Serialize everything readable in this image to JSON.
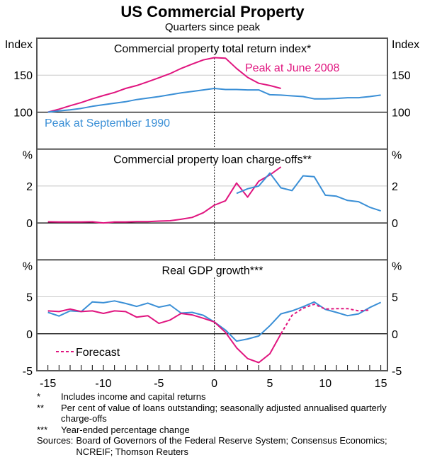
{
  "title": "US Commercial Property",
  "subtitle": "Quarters since peak",
  "colors": {
    "peak_2008": "#e0157f",
    "peak_1990": "#3a8fd6",
    "grid": "#c8c8c8"
  },
  "chart_data": [
    {
      "type": "line",
      "title": "Commercial property total return index*",
      "ylabel_left": "Index",
      "ylabel_right": "Index",
      "ylim": [
        50,
        200
      ],
      "yticks": [
        100,
        150
      ],
      "xlim": [
        -16,
        15.6
      ],
      "annotations": [
        "Peak at June 2008",
        "Peak at September 1990"
      ],
      "series": [
        {
          "name": "Peak at June 2008",
          "color": "peak_2008",
          "x0": -15,
          "values": [
            100,
            104,
            108.7,
            113,
            118,
            122.5,
            126.6,
            132,
            136,
            141,
            146.5,
            152,
            159,
            165,
            170.6,
            173.7,
            173,
            159,
            147,
            139,
            136,
            132
          ]
        },
        {
          "name": "Peak at September 1990",
          "color": "peak_1990",
          "x0": -15,
          "values": [
            100,
            101.6,
            103,
            105,
            107.8,
            110,
            112,
            114,
            117,
            119,
            121,
            123.5,
            126,
            128,
            130,
            132,
            130.6,
            130.6,
            130,
            130,
            123.5,
            123,
            122,
            121,
            118,
            118,
            118.5,
            119.5,
            119.5,
            121,
            123
          ]
        }
      ]
    },
    {
      "type": "line",
      "title": "Commercial property loan charge-offs**",
      "ylabel_left": "%",
      "ylabel_right": "%",
      "ylim": [
        -2,
        4
      ],
      "yticks": [
        0,
        2
      ],
      "xlim": [
        -16,
        15.6
      ],
      "series": [
        {
          "color": "peak_2008",
          "x0": -15,
          "values": [
            0.06,
            0.05,
            0.05,
            0.05,
            0.06,
            0,
            0.05,
            0.05,
            0.07,
            0.07,
            0.1,
            0.12,
            0.2,
            0.3,
            0.55,
            0.96,
            1.2,
            2.16,
            1.4,
            2.26,
            2.6,
            3.03
          ]
        },
        {
          "color": "peak_1990",
          "x0": 2,
          "values": [
            1.6,
            1.85,
            2.0,
            2.7,
            1.9,
            1.75,
            2.55,
            2.5,
            1.5,
            1.45,
            1.22,
            1.15,
            0.85,
            0.65
          ]
        }
      ]
    },
    {
      "type": "line",
      "title": "Real GDP growth***",
      "ylabel_left": "%",
      "ylabel_right": "%",
      "ylim": [
        -5,
        10
      ],
      "yticks": [
        -5,
        0,
        5
      ],
      "xlim": [
        -16,
        15.6
      ],
      "xticks": [
        -15,
        -10,
        -5,
        0,
        5,
        10,
        15
      ],
      "legend": {
        "label": "Forecast",
        "placement": "bottom-left"
      },
      "series": [
        {
          "color": "peak_1990",
          "x0": -15,
          "values": [
            2.9,
            2.4,
            3.1,
            3.0,
            4.3,
            4.2,
            4.45,
            4.1,
            3.7,
            4.15,
            3.6,
            3.9,
            2.8,
            2.9,
            2.5,
            1.6,
            0.5,
            -1.0,
            -0.7,
            -0.3,
            1.1,
            2.7,
            3.1,
            3.65,
            4.3,
            3.3,
            2.9,
            2.45,
            2.7,
            3.55,
            4.25
          ]
        },
        {
          "color": "peak_2008",
          "x0": -15,
          "values": [
            3.1,
            3.0,
            3.35,
            3.0,
            3.1,
            2.75,
            3.1,
            3.0,
            2.25,
            2.45,
            1.4,
            1.85,
            2.75,
            2.55,
            2.1,
            1.6,
            0.2,
            -1.9,
            -3.35,
            -3.9,
            -2.7,
            0.0
          ]
        },
        {
          "name": "Forecast",
          "color": "peak_2008",
          "dashed": true,
          "x0": 6,
          "values": [
            0.0,
            2.5,
            3.45,
            4.0,
            3.35,
            3.4,
            3.4,
            3.1,
            3.2
          ]
        }
      ]
    }
  ],
  "footnotes": [
    {
      "mark": "*",
      "text": "Includes income and capital returns"
    },
    {
      "mark": "**",
      "text": "Per cent of value of loans outstanding; seasonally adjusted annualised quarterly charge-offs"
    },
    {
      "mark": "***",
      "text": "Year-ended percentage change"
    }
  ],
  "sources": {
    "label": "Sources:",
    "text": "Board of Governors of the Federal Reserve System; Consensus Economics; NCREIF; Thomson Reuters"
  }
}
